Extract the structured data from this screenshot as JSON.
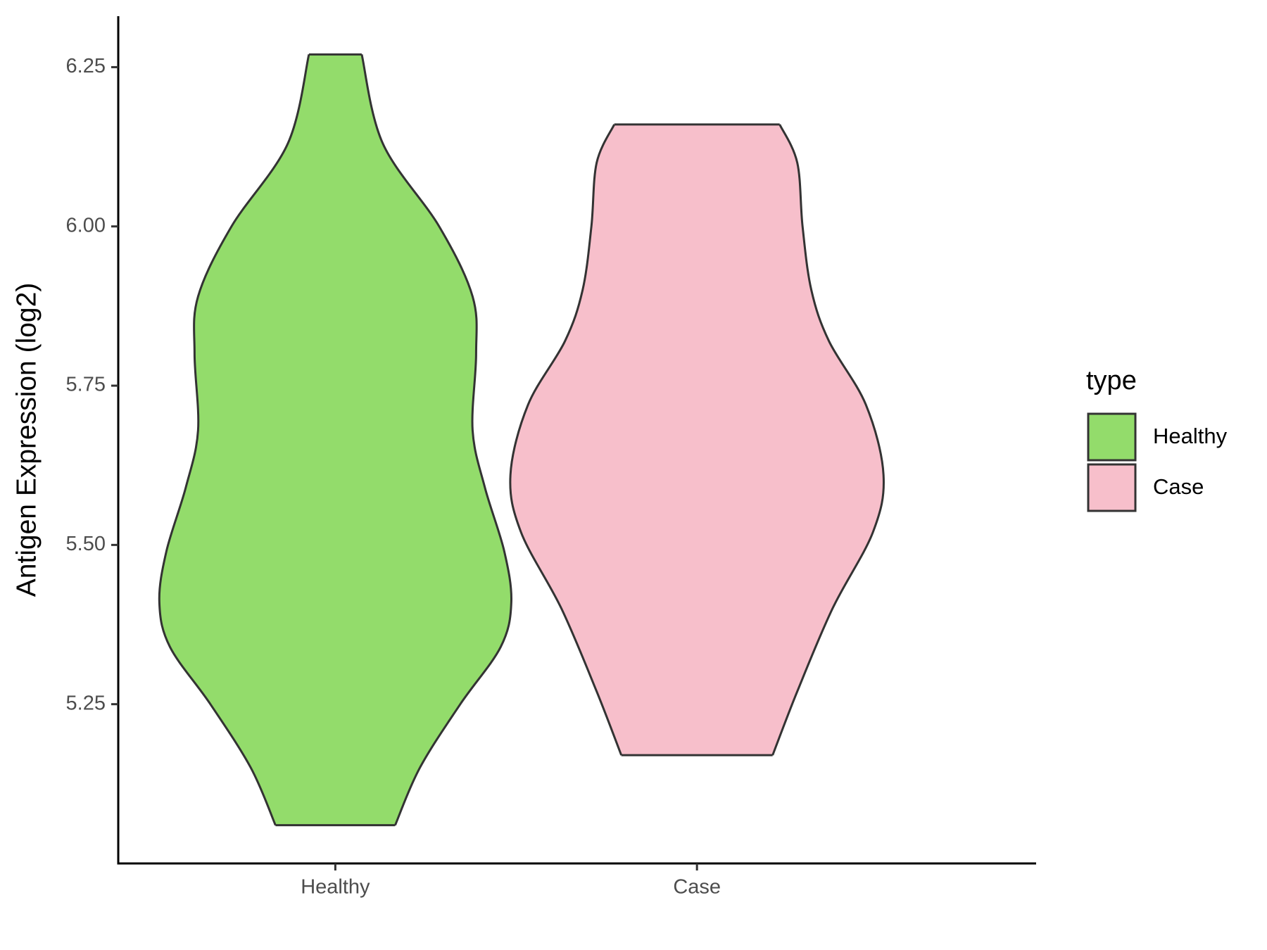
{
  "chart_data": {
    "type": "violin",
    "ylabel": "Antigen Expression (log2)",
    "categories": [
      "Healthy",
      "Case"
    ],
    "series": [
      {
        "name": "Healthy",
        "color": "#93dc6b",
        "y": [
          6.27,
          6.13,
          6.0,
          5.89,
          5.8,
          5.68,
          5.59,
          5.49,
          5.41,
          5.34,
          5.25,
          5.15,
          5.06
        ],
        "density": [
          0.15,
          0.27,
          0.59,
          0.78,
          0.8,
          0.78,
          0.85,
          0.96,
          1.0,
          0.94,
          0.71,
          0.48,
          0.34
        ]
      },
      {
        "name": "Case",
        "color": "#f7bfcb",
        "y": [
          6.16,
          6.1,
          6.0,
          5.9,
          5.82,
          5.72,
          5.61,
          5.52,
          5.4,
          5.27,
          5.17
        ],
        "density": [
          0.47,
          0.57,
          0.6,
          0.65,
          0.75,
          0.96,
          1.06,
          1.0,
          0.77,
          0.57,
          0.43
        ]
      }
    ],
    "ylim": [
      5.0,
      6.33
    ],
    "yticks": [
      {
        "value": 5.25,
        "label": "5.25"
      },
      {
        "value": 5.5,
        "label": "5.50"
      },
      {
        "value": 5.75,
        "label": "5.75"
      },
      {
        "value": 6.0,
        "label": "6.00"
      },
      {
        "value": 6.25,
        "label": "6.25"
      }
    ],
    "legend_title": "type",
    "legend": "right",
    "grid": false
  }
}
